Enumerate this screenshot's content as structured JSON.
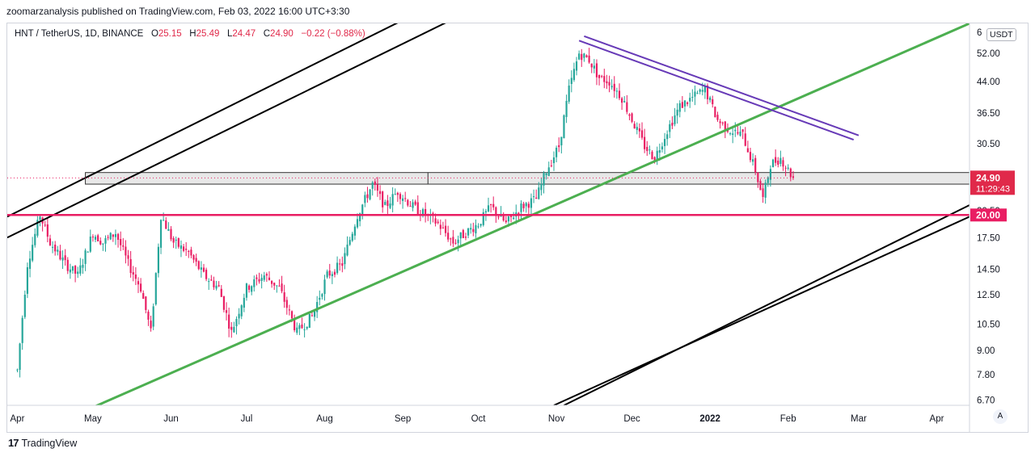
{
  "header": {
    "published": "zoomarzanalysis published on TradingView.com, Feb 03, 2022 16:00 UTC+3:30"
  },
  "legend": {
    "symbol": "HNT / TetherUS, 1D, BINANCE",
    "open_label": "O",
    "open": "25.15",
    "high_label": "H",
    "high": "25.49",
    "low_label": "L",
    "low": "24.47",
    "close_label": "C",
    "close": "24.90",
    "change": "−0.22 (−0.88%)"
  },
  "currency_label": "USDT",
  "footer": {
    "brand": "TradingView",
    "logo": "17"
  },
  "auto_label": "A",
  "colors": {
    "up": "#26a69a",
    "down": "#e91e63",
    "green_line": "#4caf50",
    "purple": "#673ab7",
    "pink": "#e91e63",
    "price_tag": "#e0294a"
  },
  "chart_data": {
    "type": "candlestick",
    "scale": "log",
    "y_ticks": [
      "6.70",
      "7.80",
      "9.00",
      "10.50",
      "12.50",
      "14.50",
      "17.50",
      "20.50",
      "24.90",
      "30.50",
      "36.50",
      "44.00",
      "52.00",
      "6"
    ],
    "x_ticks": [
      "Apr",
      "May",
      "Jun",
      "Jul",
      "Aug",
      "Sep",
      "Oct",
      "Nov",
      "Dec",
      "2022",
      "Feb",
      "Mar",
      "Apr"
    ],
    "last_price": {
      "value": "24.90",
      "countdown": "11:29:43"
    },
    "support_level": {
      "value": "20.00"
    },
    "resistance_zone": [
      24.0,
      25.7
    ],
    "candles_anchor": [
      [
        "2021-04-01",
        8
      ],
      [
        "2021-04-05",
        15
      ],
      [
        "2021-04-10",
        20
      ],
      [
        "2021-04-14",
        17
      ],
      [
        "2021-04-20",
        15
      ],
      [
        "2021-04-25",
        14
      ],
      [
        "2021-05-01",
        18
      ],
      [
        "2021-05-05",
        17
      ],
      [
        "2021-05-10",
        18
      ],
      [
        "2021-05-15",
        15
      ],
      [
        "2021-05-20",
        13
      ],
      [
        "2021-05-24",
        10
      ],
      [
        "2021-05-28",
        20
      ],
      [
        "2021-06-02",
        17
      ],
      [
        "2021-06-08",
        16
      ],
      [
        "2021-06-14",
        14
      ],
      [
        "2021-06-20",
        13
      ],
      [
        "2021-06-25",
        10
      ],
      [
        "2021-07-01",
        13
      ],
      [
        "2021-07-08",
        14
      ],
      [
        "2021-07-14",
        13
      ],
      [
        "2021-07-21",
        10
      ],
      [
        "2021-07-27",
        11
      ],
      [
        "2021-08-02",
        14
      ],
      [
        "2021-08-08",
        15
      ],
      [
        "2021-08-14",
        20
      ],
      [
        "2021-08-20",
        24
      ],
      [
        "2021-08-25",
        21
      ],
      [
        "2021-08-30",
        23
      ],
      [
        "2021-09-05",
        21
      ],
      [
        "2021-09-10",
        20
      ],
      [
        "2021-09-15",
        19
      ],
      [
        "2021-09-21",
        17
      ],
      [
        "2021-09-26",
        18
      ],
      [
        "2021-10-01",
        19
      ],
      [
        "2021-10-06",
        21
      ],
      [
        "2021-10-12",
        19
      ],
      [
        "2021-10-18",
        21
      ],
      [
        "2021-10-24",
        22
      ],
      [
        "2021-10-28",
        26
      ],
      [
        "2021-11-02",
        30
      ],
      [
        "2021-11-06",
        42
      ],
      [
        "2021-11-10",
        52
      ],
      [
        "2021-11-14",
        50
      ],
      [
        "2021-11-18",
        45
      ],
      [
        "2021-11-22",
        44
      ],
      [
        "2021-11-27",
        40
      ],
      [
        "2021-12-02",
        34
      ],
      [
        "2021-12-06",
        30
      ],
      [
        "2021-12-10",
        28
      ],
      [
        "2021-12-15",
        33
      ],
      [
        "2021-12-20",
        38
      ],
      [
        "2021-12-25",
        40
      ],
      [
        "2021-12-30",
        42
      ],
      [
        "2022-01-04",
        35
      ],
      [
        "2022-01-09",
        33
      ],
      [
        "2022-01-14",
        32
      ],
      [
        "2022-01-19",
        26
      ],
      [
        "2022-01-22",
        22
      ],
      [
        "2022-01-25",
        27
      ],
      [
        "2022-01-29",
        28
      ],
      [
        "2022-02-03",
        24.9
      ]
    ]
  }
}
